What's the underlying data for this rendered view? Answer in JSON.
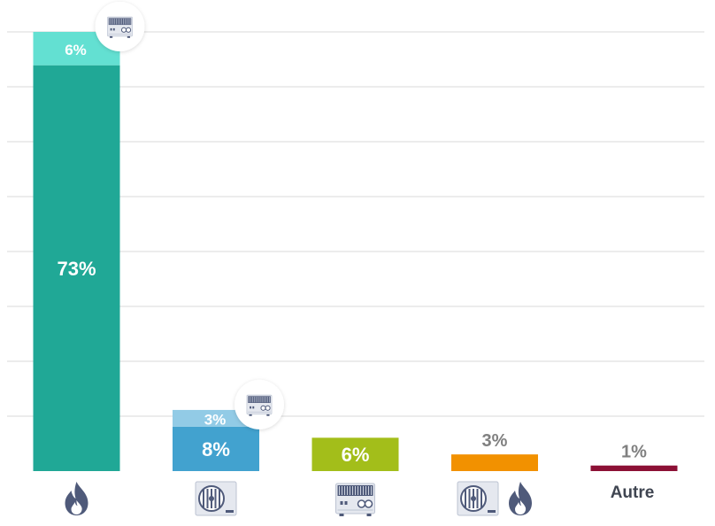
{
  "chart_data": {
    "type": "bar",
    "stacked": true,
    "categories": [
      "gas-boiler",
      "heat-pump",
      "electric-heater",
      "heat-pump-gas-hybrid",
      "Autre"
    ],
    "category_icons": [
      [
        "flame-icon"
      ],
      [
        "heat-pump-icon"
      ],
      [
        "electric-heater-icon"
      ],
      [
        "heat-pump-icon",
        "flame-icon"
      ],
      []
    ],
    "category_labels": [
      "",
      "",
      "",
      "",
      "Autre"
    ],
    "series": [
      {
        "values": [
          73,
          8,
          6,
          3,
          1
        ],
        "labels": [
          "73%",
          "8%",
          "6%",
          "3%",
          "1%"
        ]
      },
      {
        "values": [
          6,
          3,
          0,
          0,
          0
        ],
        "labels": [
          "6%",
          "3%",
          "",
          "",
          ""
        ],
        "badge_icon": "electric-heater-icon"
      }
    ],
    "colors": {
      "main": [
        "#20a896",
        "#42a2cf",
        "#a3be1a",
        "#f29100",
        "#8c1035"
      ],
      "top": [
        "#63e0d2",
        "#92cbe6"
      ],
      "icon": "#4f5a7a",
      "grid": "#e6e6e6",
      "label_inside": "#ffffff",
      "label_outside": "#808080"
    },
    "ylim": [
      0,
      79
    ],
    "grid": true,
    "legend": "none"
  }
}
